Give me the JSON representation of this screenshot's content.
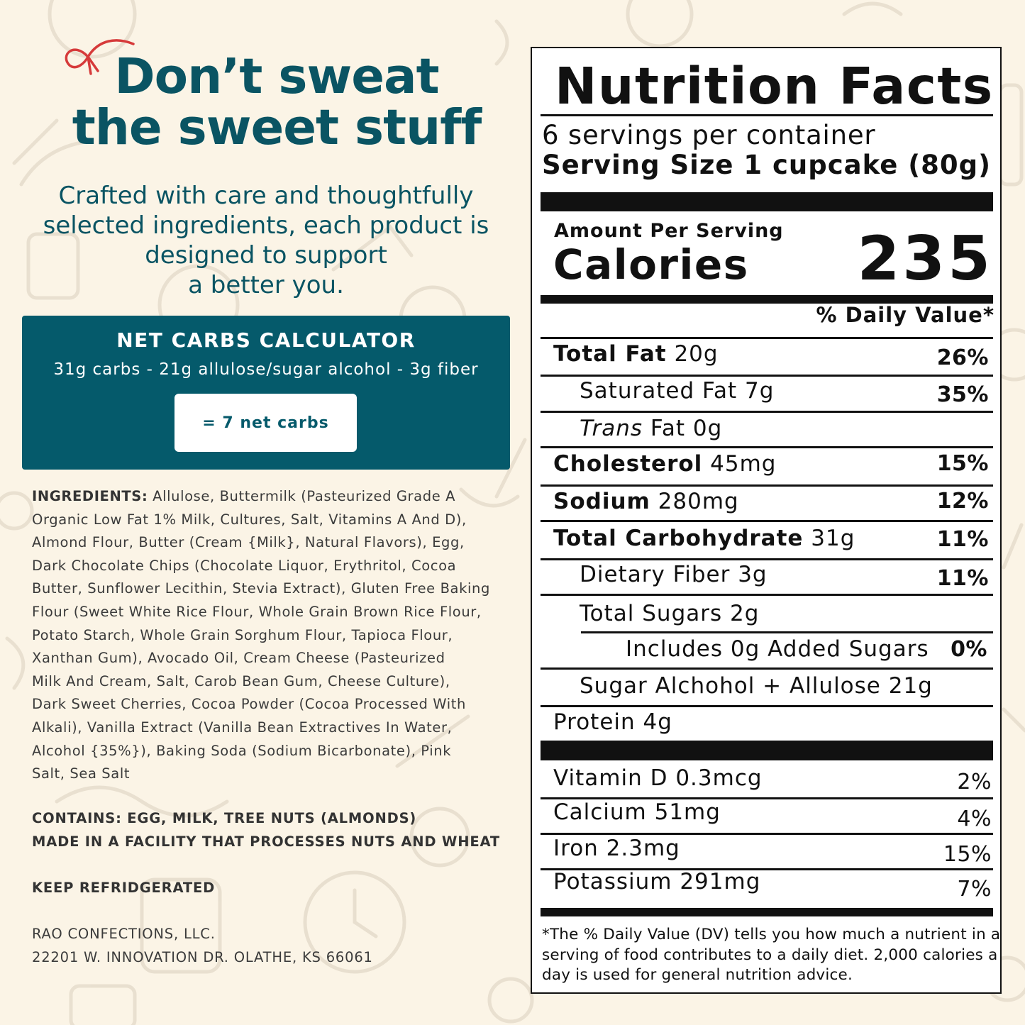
{
  "headline": {
    "line1": "Don’t sweat",
    "line2": "the sweet stuff"
  },
  "subtitle": {
    "line1": "Crafted with care and thoughtfully",
    "line2": "selected ingredients, each product is",
    "line3": "designed to support",
    "line4": "a better you."
  },
  "calculator": {
    "title": "NET CARBS CALCULATOR",
    "formula": "31g carbs - 21g allulose/sugar alcohol - 3g fiber",
    "result": "= 7 net carbs"
  },
  "ingredients": {
    "label": "INGREDIENTS:",
    "lines": [
      " Allulose, Buttermilk (Pasteurized Grade A",
      "Organic Low Fat 1% Milk, Cultures, Salt, Vitamins A And D),",
      "Almond Flour, Butter (Cream {Milk}, Natural Flavors), Egg,",
      "Dark Chocolate Chips (Chocolate Liquor, Erythritol, Cocoa",
      "Butter, Sunflower Lecithin, Stevia Extract), Gluten Free Baking",
      "Flour (Sweet White Rice Flour, Whole Grain Brown Rice Flour,",
      "Potato Starch, Whole Grain Sorghum Flour, Tapioca Flour,",
      "Xanthan Gum), Avocado Oil, Cream Cheese (Pasteurized",
      "Milk And Cream, Salt, Carob Bean Gum, Cheese Culture),",
      "Dark Sweet Cherries, Cocoa Powder (Cocoa Processed With",
      "Alkali), Vanilla Extract (Vanilla Bean Extractives In Water,",
      "Alcohol {35%}), Baking Soda (Sodium Bicarbonate), Pink",
      "Salt, Sea Salt"
    ]
  },
  "allergens": {
    "contains": "CONTAINS: EGG, MILK, TREE NUTS (ALMONDS)",
    "facility": "MADE IN A FACILITY THAT PROCESSES NUTS AND WHEAT"
  },
  "storage": "KEEP REFRIDGERATED",
  "company": {
    "name": "RAO CONFECTIONS, LLC.",
    "address": "22201 W. INNOVATION DR. OLATHE, KS 66061"
  },
  "nutrition": {
    "title": "Nutrition Facts",
    "servings": "6 servings per container",
    "serving_size": "Serving Size 1 cupcake (80g)",
    "amount_per_serving": "Amount Per Serving",
    "calories_label": "Calories",
    "calories_value": "235",
    "dv_header": "% Daily Value*",
    "total_fat": {
      "label": "Total Fat",
      "value": " 20g",
      "dv": "26%"
    },
    "saturated_fat": {
      "label": "Saturated Fat 7g",
      "dv": "35%"
    },
    "trans_fat": {
      "label": "Trans",
      "value": " Fat 0g"
    },
    "cholesterol": {
      "label": "Cholesterol",
      "value": " 45mg",
      "dv": "15%"
    },
    "sodium": {
      "label": "Sodium",
      "value": " 280mg",
      "dv": "12%"
    },
    "total_carb": {
      "label": "Total Carbohydrate",
      "value": " 31g",
      "dv": "11%"
    },
    "fiber": {
      "label": "Dietary Fiber 3g",
      "dv": "11%"
    },
    "total_sugars": {
      "label": "Total Sugars 2g"
    },
    "added_sugars": {
      "label": "Includes 0g Added Sugars",
      "dv": "0%"
    },
    "sugar_alcohol": {
      "label": "Sugar Alchohol + Allulose 21g"
    },
    "protein": {
      "label": "Protein 4g"
    },
    "vitamin_d": {
      "label": "Vitamin D 0.3mcg",
      "dv": "2%"
    },
    "calcium": {
      "label": "Calcium 51mg",
      "dv": "4%"
    },
    "iron": {
      "label": "Iron 2.3mg",
      "dv": "15%"
    },
    "potassium": {
      "label": "Potassium 291mg",
      "dv": "7%"
    },
    "footnote": [
      "*The % Daily Value (DV) tells you how much a nutrient in a",
      "serving of food contributes to a daily diet. 2,000 calories a",
      "day is used for general nutrition advice."
    ]
  }
}
